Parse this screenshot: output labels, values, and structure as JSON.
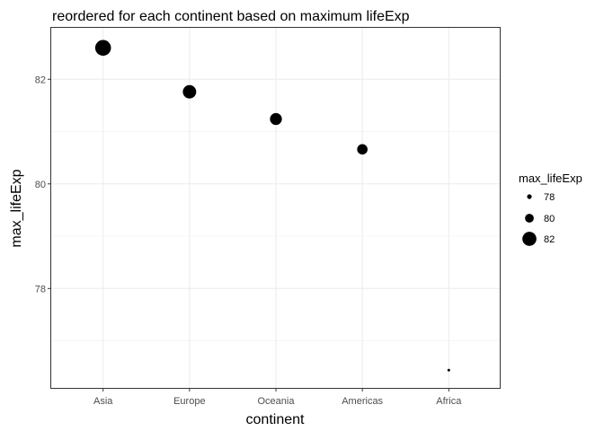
{
  "chart_data": {
    "type": "scatter",
    "title": "reordered for each continent based on maximum lifeExp",
    "xlabel": "continent",
    "ylabel": "max_lifeExp",
    "categories": [
      "Asia",
      "Europe",
      "Oceania",
      "Americas",
      "Africa"
    ],
    "values": [
      82.6,
      81.76,
      81.24,
      80.66,
      76.44
    ],
    "ylim": [
      76.1,
      83.0
    ],
    "y_ticks": [
      78,
      80,
      82
    ],
    "point_color": "#000000",
    "size_by": "max_lifeExp",
    "grid": true,
    "legend": {
      "title": "max_lifeExp",
      "position": "right",
      "entries": [
        {
          "label": "78",
          "value": 78
        },
        {
          "label": "80",
          "value": 80
        },
        {
          "label": "82",
          "value": 82
        }
      ]
    }
  }
}
